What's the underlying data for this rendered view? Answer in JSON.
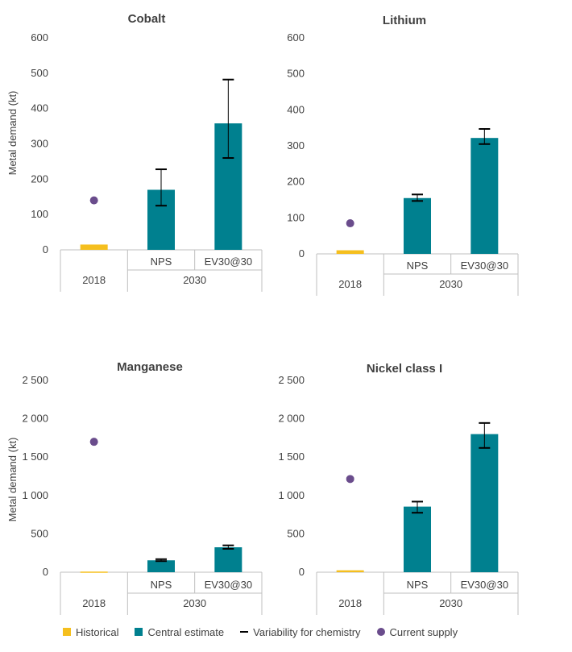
{
  "colors": {
    "historical": "#f5bf1e",
    "central": "#00808f",
    "variability": "#000000",
    "supply": "#6a4c8c",
    "text": "#404040",
    "axis": "#bfbfbf"
  },
  "legend": {
    "historical": "Historical",
    "central": "Central estimate",
    "variability": "Variability for chemistry",
    "supply": "Current supply"
  },
  "chart_data": [
    {
      "type": "bar",
      "title": "Cobalt",
      "ylabel": "Metal demand (kt)",
      "ylim": [
        0,
        600
      ],
      "yticks": [
        0,
        100,
        200,
        300,
        400,
        500,
        600
      ],
      "ytick_labels": [
        "0",
        "100",
        "200",
        "300",
        "400",
        "500",
        "600"
      ],
      "categories": [
        "2018",
        "NPS",
        "EV30@30"
      ],
      "groups": [
        "2018",
        "2030"
      ],
      "central_estimate": [
        15,
        170,
        358
      ],
      "series_type": [
        "historical",
        "central",
        "central"
      ],
      "variability_low": [
        null,
        125,
        260
      ],
      "variability_high": [
        null,
        228,
        482
      ],
      "current_supply": 140
    },
    {
      "type": "bar",
      "title": "Lithium",
      "ylabel": "",
      "ylim": [
        0,
        600
      ],
      "yticks": [
        0,
        100,
        200,
        300,
        400,
        500,
        600
      ],
      "ytick_labels": [
        "0",
        "100",
        "200",
        "300",
        "400",
        "500",
        "600"
      ],
      "categories": [
        "2018",
        "NPS",
        "EV30@30"
      ],
      "groups": [
        "2018",
        "2030"
      ],
      "central_estimate": [
        10,
        155,
        322
      ],
      "series_type": [
        "historical",
        "central",
        "central"
      ],
      "variability_low": [
        null,
        147,
        305
      ],
      "variability_high": [
        null,
        165,
        347
      ],
      "current_supply": 85
    },
    {
      "type": "bar",
      "title": "Manganese",
      "ylabel": "Metal demand (kt)",
      "ylim": [
        0,
        2500
      ],
      "yticks": [
        0,
        500,
        1000,
        1500,
        2000,
        2500
      ],
      "ytick_labels": [
        "0",
        "500",
        "1 000",
        "1 500",
        "2 000",
        "2 500"
      ],
      "categories": [
        "2018",
        "NPS",
        "EV30@30"
      ],
      "groups": [
        "2018",
        "2030"
      ],
      "central_estimate": [
        8,
        155,
        325
      ],
      "series_type": [
        "historical",
        "central",
        "central"
      ],
      "variability_low": [
        null,
        145,
        305
      ],
      "variability_high": [
        null,
        170,
        350
      ],
      "current_supply": 1700
    },
    {
      "type": "bar",
      "title": "Nickel class I",
      "ylabel": "",
      "ylim": [
        0,
        2500
      ],
      "yticks": [
        0,
        500,
        1000,
        1500,
        2000,
        2500
      ],
      "ytick_labels": [
        "0",
        "500",
        "1 000",
        "1 500",
        "2 000",
        "2 500"
      ],
      "categories": [
        "2018",
        "NPS",
        "EV30@30"
      ],
      "groups": [
        "2018",
        "2030"
      ],
      "central_estimate": [
        25,
        855,
        1800
      ],
      "series_type": [
        "historical",
        "central",
        "central"
      ],
      "variability_low": [
        null,
        775,
        1620
      ],
      "variability_high": [
        null,
        920,
        1945
      ],
      "current_supply": 1215
    }
  ]
}
